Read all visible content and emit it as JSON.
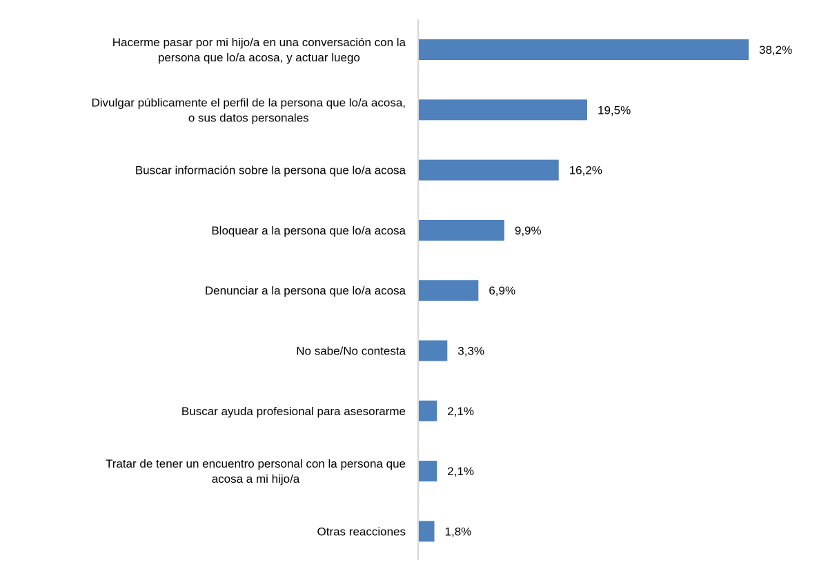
{
  "chart_data": {
    "type": "bar",
    "orientation": "horizontal",
    "title": "",
    "xlabel": "",
    "ylabel": "",
    "unit": "%",
    "grid": false,
    "legend": "none",
    "bar_color": "#4f81bd",
    "xlim": [
      0,
      40
    ],
    "categories": [
      [
        "Hacerme pasar por mi hijo/a en una conversación con la",
        "persona que lo/a acosa, y actuar luego"
      ],
      [
        "Divulgar públicamente el perfil de la persona que lo/a acosa,",
        "o sus datos personales"
      ],
      [
        "Buscar información sobre la persona que lo/a acosa"
      ],
      [
        "Bloquear a la persona que lo/a acosa"
      ],
      [
        "Denunciar a la persona que lo/a acosa"
      ],
      [
        "No sabe/No contesta"
      ],
      [
        "Buscar ayuda profesional para asesorarme"
      ],
      [
        "Tratar de tener un encuentro personal con la persona que",
        "acosa a mi hijo/a"
      ],
      [
        "Otras reacciones"
      ]
    ],
    "values": [
      38.2,
      19.5,
      16.2,
      9.9,
      6.9,
      3.3,
      2.1,
      2.1,
      1.8
    ],
    "value_labels": [
      "38,2%",
      "19,5%",
      "16,2%",
      "9,9%",
      "6,9%",
      "3,3%",
      "2,1%",
      "2,1%",
      "1,8%"
    ]
  }
}
